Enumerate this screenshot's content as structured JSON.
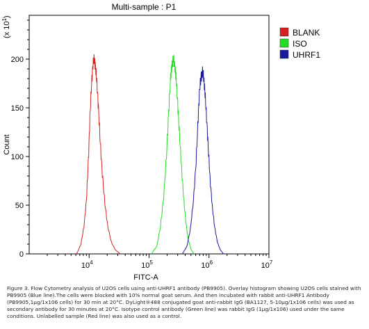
{
  "chart_data": {
    "type": "line",
    "title": "Multi-sample : P1",
    "xlabel": "FITC-A",
    "ylabel": "Count",
    "y_multiplier_label": "(x 10",
    "y_multiplier_exp": "1",
    "x_scale": "log",
    "xlim": [
      1000,
      10000000
    ],
    "ylim": [
      0,
      245
    ],
    "x_tick_values": [
      10000,
      100000,
      1000000,
      10000000
    ],
    "x_tick_labels": [
      {
        "base": "10",
        "exp": "4"
      },
      {
        "base": "10",
        "exp": "5"
      },
      {
        "base": "10",
        "exp": "6"
      },
      {
        "base": "10",
        "exp": "7"
      }
    ],
    "y_ticks": [
      0,
      50,
      100,
      150,
      200
    ],
    "y_tick_labels": [
      "0",
      "50",
      "100",
      "150",
      "200"
    ],
    "grid": false,
    "legend_position": "top-right",
    "series": [
      {
        "name": "BLANK",
        "color": "#d42020",
        "x": [
          6200,
          7300,
          8200,
          9000,
          9700,
          10300,
          11000,
          11600,
          12200,
          12800,
          13500,
          14300,
          15300,
          16600,
          18300,
          20500,
          23500,
          27500,
          33000
        ],
        "y": [
          0,
          10,
          28,
          55,
          95,
          140,
          175,
          195,
          200,
          192,
          175,
          150,
          115,
          82,
          52,
          28,
          12,
          4,
          0
        ]
      },
      {
        "name": "ISO",
        "color": "#22dd22",
        "x": [
          110000,
          135000,
          155000,
          175000,
          195000,
          212000,
          228000,
          242000,
          256000,
          270000,
          285000,
          300000,
          320000,
          345000,
          375000,
          410000,
          450000,
          500000,
          560000
        ],
        "y": [
          0,
          8,
          28,
          58,
          100,
          145,
          180,
          195,
          200,
          192,
          178,
          155,
          125,
          92,
          60,
          33,
          15,
          5,
          0
        ]
      },
      {
        "name": "UHRF1",
        "color": "#1a1a9c",
        "x": [
          360000,
          430000,
          490000,
          550000,
          610000,
          660000,
          700000,
          740000,
          780000,
          820000,
          860000,
          910000,
          970000,
          1040000,
          1130000,
          1240000,
          1380000,
          1550000,
          1750000
        ],
        "y": [
          0,
          8,
          26,
          55,
          95,
          140,
          170,
          182,
          187,
          180,
          165,
          140,
          110,
          78,
          50,
          28,
          12,
          4,
          0
        ]
      }
    ]
  },
  "caption": "Figure 3. Flow Cytometry analysis of U2OS cells using anti-UHRF1 antibody (PB9905).  Overlay histogram showing U2OS cells stained with PB9905 (Blue line).The cells were blocked with 10% normal goat serum. And then incubated with rabbit anti-UHRF1 Antibody (PB9905,1μg/1x106 cells) for 30 min at 20°C. DyLight®488 conjugated goat anti-rabbit IgG (BA1127, 5-10μg/1x106 cells) was used as secondary antibody for 30 minutes at 20°C. Isotype control antibody (Green line) was rabbit IgG (1μg/1x106) used under the same conditions. Unlabelled sample (Red line) was also used as a control."
}
